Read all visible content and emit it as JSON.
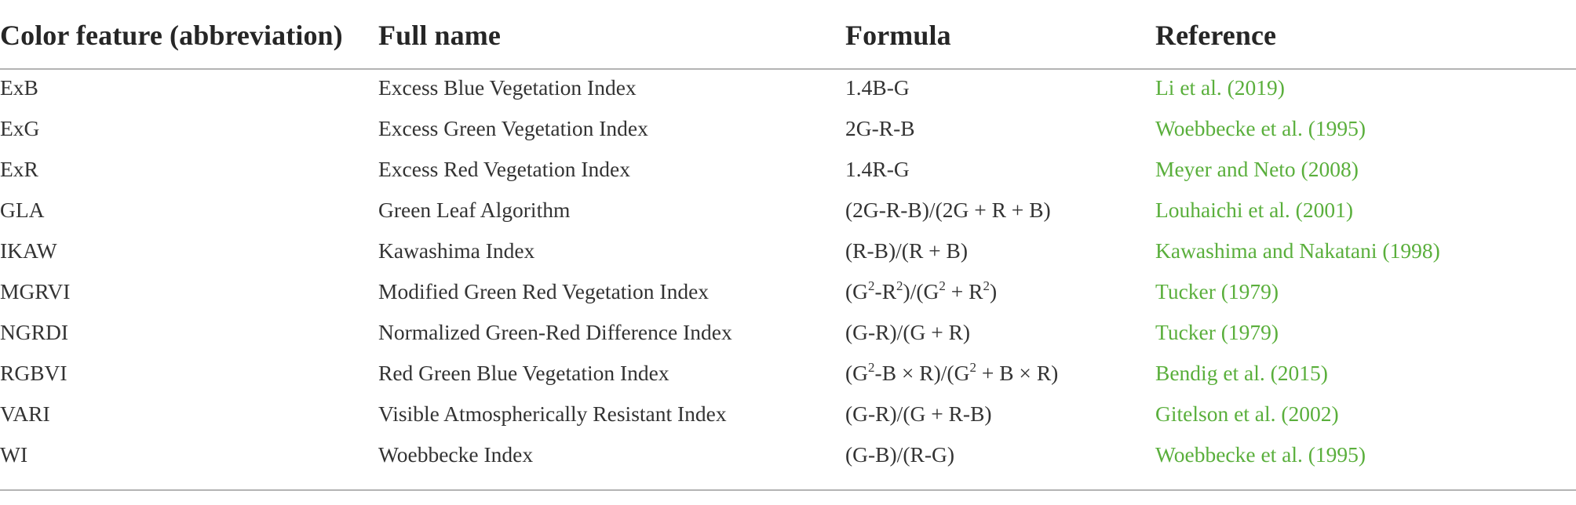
{
  "table": {
    "headers": [
      "Color feature (abbreviation)",
      "Full name",
      "Formula",
      "Reference"
    ],
    "rows": [
      {
        "abbr": "ExB",
        "name": "Excess Blue Vegetation Index",
        "formula": [
          {
            "t": "1.4B-G"
          }
        ],
        "reference": "Li et al. (2019)"
      },
      {
        "abbr": "ExG",
        "name": "Excess Green Vegetation Index",
        "formula": [
          {
            "t": "2G-R-B"
          }
        ],
        "reference": "Woebbecke et al. (1995)"
      },
      {
        "abbr": "ExR",
        "name": "Excess Red Vegetation Index",
        "formula": [
          {
            "t": "1.4R-G"
          }
        ],
        "reference": "Meyer and Neto (2008)"
      },
      {
        "abbr": "GLA",
        "name": "Green Leaf Algorithm",
        "formula": [
          {
            "t": "(2G-R-B)/(2G + R + B)"
          }
        ],
        "reference": "Louhaichi et al. (2001)"
      },
      {
        "abbr": "IKAW",
        "name": "Kawashima Index",
        "formula": [
          {
            "t": "(R-B)/(R + B)"
          }
        ],
        "reference": "Kawashima and Nakatani (1998)"
      },
      {
        "abbr": "MGRVI",
        "name": "Modified Green Red Vegetation Index",
        "formula": [
          {
            "t": "(G"
          },
          {
            "sup": "2"
          },
          {
            "t": "-R"
          },
          {
            "sup": "2"
          },
          {
            "t": ")/(G"
          },
          {
            "sup": "2"
          },
          {
            "t": " + R"
          },
          {
            "sup": "2"
          },
          {
            "t": ")"
          }
        ],
        "reference": "Tucker (1979)"
      },
      {
        "abbr": "NGRDI",
        "name": "Normalized Green-Red Difference Index",
        "formula": [
          {
            "t": "(G-R)/(G + R)"
          }
        ],
        "reference": "Tucker (1979)"
      },
      {
        "abbr": "RGBVI",
        "name": "Red Green Blue Vegetation Index",
        "formula": [
          {
            "t": "(G"
          },
          {
            "sup": "2"
          },
          {
            "t": "-B × R)/(G"
          },
          {
            "sup": "2"
          },
          {
            "t": " + B × R)"
          }
        ],
        "reference": "Bendig et al. (2015)"
      },
      {
        "abbr": "VARI",
        "name": "Visible Atmospherically Resistant Index",
        "formula": [
          {
            "t": "(G-R)/(G + R-B)"
          }
        ],
        "reference": "Gitelson et al. (2002)"
      },
      {
        "abbr": "WI",
        "name": "Woebbecke Index",
        "formula": [
          {
            "t": "(G-B)/(R-G)"
          }
        ],
        "reference": "Woebbecke et al. (1995)"
      }
    ]
  },
  "colors": {
    "text": "#333333",
    "header_text": "#262626",
    "reference_link": "#5aaf3c",
    "rule": "#b4b4b4"
  }
}
